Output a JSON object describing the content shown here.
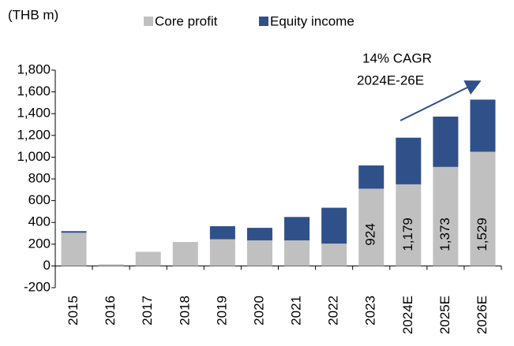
{
  "chart_data": {
    "type": "stacked_bar",
    "unit_label": "(THB m)",
    "categories": [
      "2015",
      "2016",
      "2017",
      "2018",
      "2019",
      "2020",
      "2021",
      "2022",
      "2023",
      "2024E",
      "2025E",
      "2026E"
    ],
    "series": [
      {
        "name": "Core profit",
        "color": "#c0c0c0",
        "values": [
          305,
          15,
          130,
          220,
          245,
          235,
          235,
          205,
          710,
          750,
          910,
          1050
        ]
      },
      {
        "name": "Equity income",
        "color": "#2f5089",
        "values": [
          15,
          0,
          0,
          0,
          120,
          115,
          215,
          330,
          214,
          429,
          463,
          479
        ]
      }
    ],
    "totals": [
      null,
      null,
      null,
      null,
      null,
      null,
      null,
      null,
      924,
      1179,
      1373,
      1529
    ],
    "totals_labels": [
      null,
      null,
      null,
      null,
      null,
      null,
      null,
      null,
      "924",
      "1,179",
      "1,373",
      "1,529"
    ],
    "annotations": [
      "14% CAGR",
      "2024E-26E"
    ],
    "ylim": [
      -200,
      1800
    ],
    "yticks": [
      -200,
      0,
      200,
      400,
      600,
      800,
      {
        "value": 1000,
        "label": "1,000"
      },
      {
        "value": 1200,
        "label": "1,200"
      },
      {
        "value": 1400,
        "label": "1,400"
      },
      {
        "value": 1600,
        "label": "1,600"
      },
      {
        "value": 1800,
        "label": "1,800"
      }
    ],
    "legend": "top",
    "grid": false
  }
}
